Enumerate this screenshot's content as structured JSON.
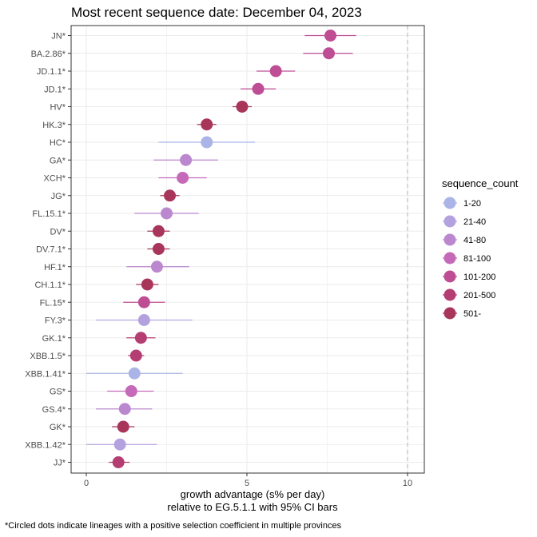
{
  "chart_data": {
    "type": "scatter",
    "title": "Most recent sequence date: December 04, 2023",
    "xlabel_lines": [
      "growth advantage (s% per day)",
      "relative to  EG.5.1.1  with 95% CI bars"
    ],
    "ylabel": "",
    "caption": "*Circled dots indicate lineages with a positive selection coefficient in multiple provinces",
    "xlim": [
      -0.45,
      10.5
    ],
    "xticks": [
      0,
      5,
      10
    ],
    "reference_line_x": 10,
    "grid": true,
    "legend": {
      "title": "sequence_count",
      "placement": "right",
      "entries": [
        {
          "label": "1-20",
          "color": "#aab4e6"
        },
        {
          "label": "21-40",
          "color": "#b3a2de"
        },
        {
          "label": "41-80",
          "color": "#bb88cf"
        },
        {
          "label": "81-100",
          "color": "#c46ab8"
        },
        {
          "label": "101-200",
          "color": "#be4d93"
        },
        {
          "label": "201-500",
          "color": "#b43d72"
        },
        {
          "label": "501-",
          "color": "#a8365a"
        }
      ]
    },
    "points": [
      {
        "lineage": "JN*",
        "x": 7.6,
        "lo": 6.8,
        "hi": 8.4,
        "count_bin": "101-200"
      },
      {
        "lineage": "BA.2.86*",
        "x": 7.55,
        "lo": 6.75,
        "hi": 8.3,
        "count_bin": "101-200"
      },
      {
        "lineage": "JD.1.1*",
        "x": 5.9,
        "lo": 5.3,
        "hi": 6.5,
        "count_bin": "101-200"
      },
      {
        "lineage": "JD.1*",
        "x": 5.35,
        "lo": 4.8,
        "hi": 5.9,
        "count_bin": "101-200"
      },
      {
        "lineage": "HV*",
        "x": 4.85,
        "lo": 4.55,
        "hi": 5.15,
        "count_bin": "501-"
      },
      {
        "lineage": "HK.3*",
        "x": 3.75,
        "lo": 3.45,
        "hi": 4.05,
        "count_bin": "501-"
      },
      {
        "lineage": "HC*",
        "x": 3.75,
        "lo": 2.25,
        "hi": 5.25,
        "count_bin": "1-20"
      },
      {
        "lineage": "GA*",
        "x": 3.1,
        "lo": 2.1,
        "hi": 4.1,
        "count_bin": "41-80"
      },
      {
        "lineage": "XCH*",
        "x": 3.0,
        "lo": 2.25,
        "hi": 3.75,
        "count_bin": "81-100"
      },
      {
        "lineage": "JG*",
        "x": 2.6,
        "lo": 2.3,
        "hi": 2.9,
        "count_bin": "501-"
      },
      {
        "lineage": "FL.15.1*",
        "x": 2.5,
        "lo": 1.5,
        "hi": 3.5,
        "count_bin": "41-80"
      },
      {
        "lineage": "DV*",
        "x": 2.25,
        "lo": 1.9,
        "hi": 2.6,
        "count_bin": "501-"
      },
      {
        "lineage": "DV.7.1*",
        "x": 2.25,
        "lo": 1.9,
        "hi": 2.6,
        "count_bin": "501-"
      },
      {
        "lineage": "HF.1*",
        "x": 2.2,
        "lo": 1.25,
        "hi": 3.2,
        "count_bin": "41-80"
      },
      {
        "lineage": "CH.1.1*",
        "x": 1.9,
        "lo": 1.55,
        "hi": 2.25,
        "count_bin": "501-"
      },
      {
        "lineage": "FL.15*",
        "x": 1.8,
        "lo": 1.15,
        "hi": 2.45,
        "count_bin": "101-200"
      },
      {
        "lineage": "FY.3*",
        "x": 1.8,
        "lo": 0.3,
        "hi": 3.3,
        "count_bin": "21-40"
      },
      {
        "lineage": "GK.1*",
        "x": 1.7,
        "lo": 1.25,
        "hi": 2.15,
        "count_bin": "201-500"
      },
      {
        "lineage": "XBB.1.5*",
        "x": 1.55,
        "lo": 1.3,
        "hi": 1.8,
        "count_bin": "201-500"
      },
      {
        "lineage": "XBB.1.41*",
        "x": 1.5,
        "lo": 0.0,
        "hi": 3.0,
        "count_bin": "1-20"
      },
      {
        "lineage": "GS*",
        "x": 1.4,
        "lo": 0.65,
        "hi": 2.1,
        "count_bin": "81-100"
      },
      {
        "lineage": "GS.4*",
        "x": 1.2,
        "lo": 0.3,
        "hi": 2.05,
        "count_bin": "41-80"
      },
      {
        "lineage": "GK*",
        "x": 1.15,
        "lo": 0.8,
        "hi": 1.5,
        "count_bin": "501-"
      },
      {
        "lineage": "XBB.1.42*",
        "x": 1.05,
        "lo": 0.0,
        "hi": 2.2,
        "count_bin": "21-40"
      },
      {
        "lineage": "JJ*",
        "x": 1.0,
        "lo": 0.7,
        "hi": 1.35,
        "count_bin": "201-500"
      }
    ]
  }
}
